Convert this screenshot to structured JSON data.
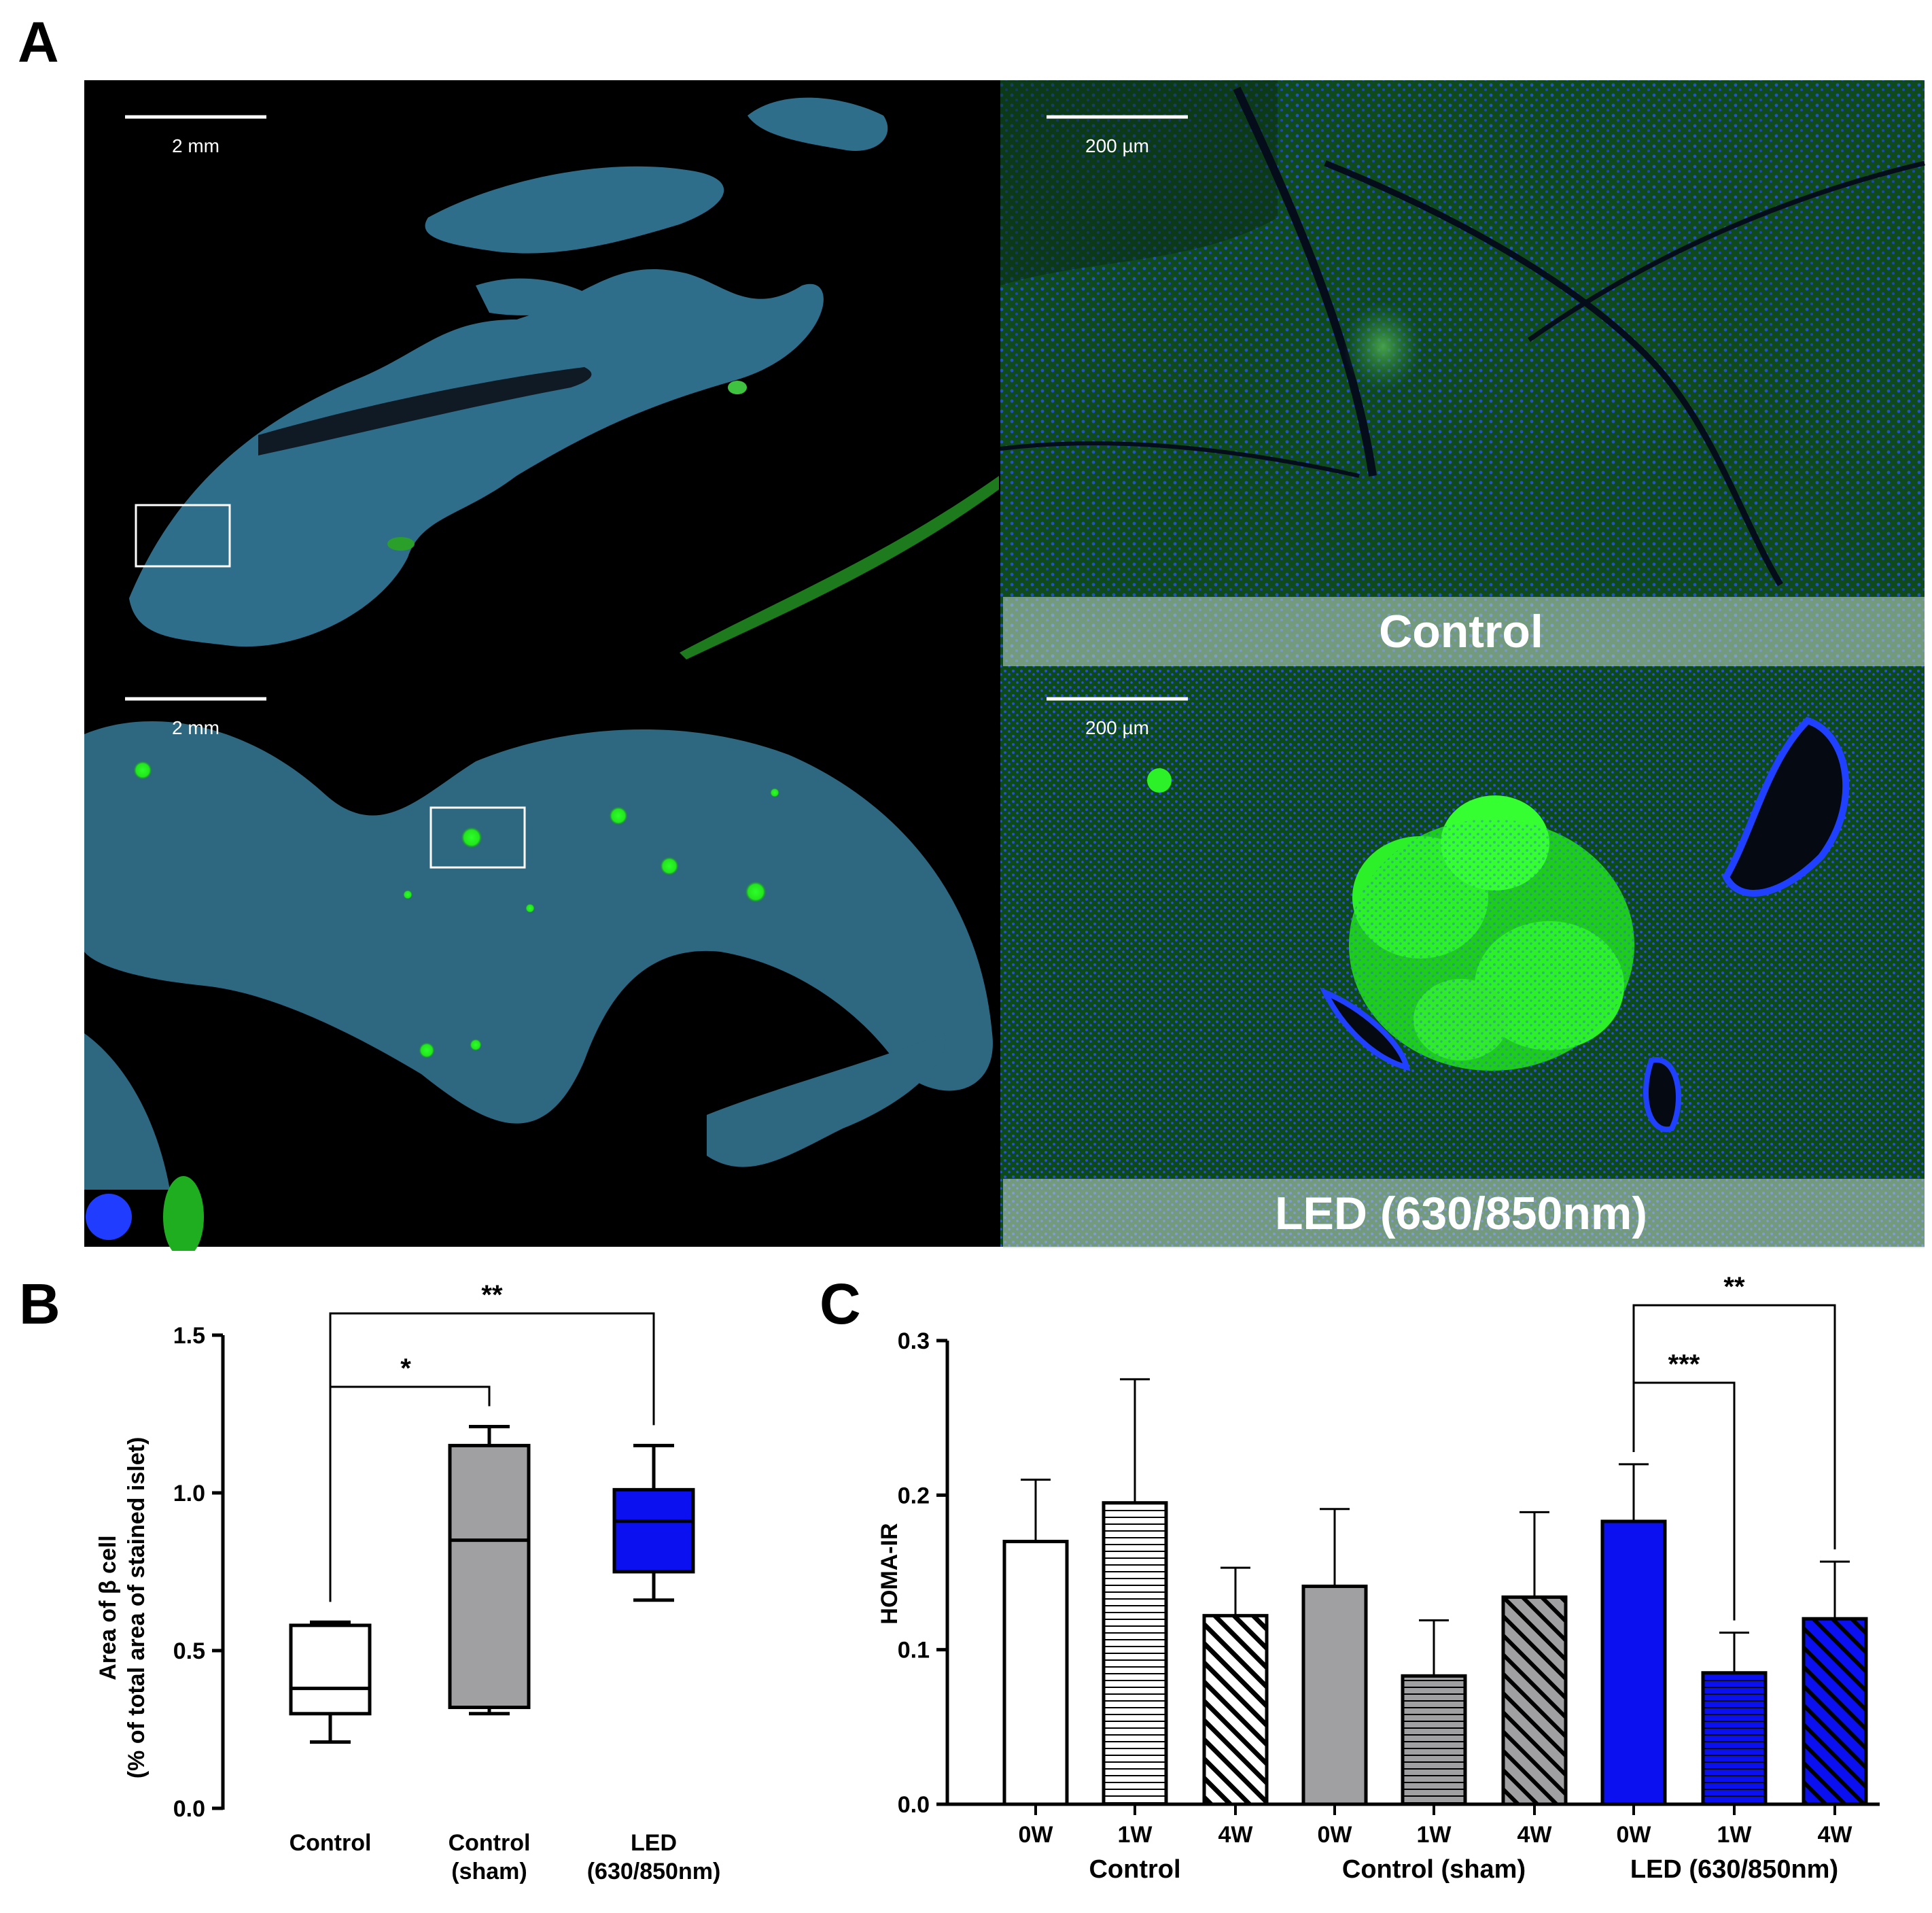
{
  "panels": {
    "a": {
      "letter": "A",
      "scale_bars": [
        "2 mm",
        "200 µm",
        "2 mm",
        "200 µm"
      ],
      "band_labels": [
        "Control",
        "LED (630/850nm)"
      ],
      "colors": {
        "nuclei": "#1a3cff",
        "insulin": "#22e61c",
        "background": "#000000"
      }
    },
    "b": {
      "letter": "B"
    },
    "c": {
      "letter": "C"
    }
  },
  "chart_data": [
    {
      "type": "box",
      "ylabel_lines": [
        "Area of β cell",
        "(% of total area of stained islet)"
      ],
      "yticks": [
        "0.0",
        "0.5",
        "1.0",
        "1.5"
      ],
      "ylim": [
        0,
        1.5
      ],
      "categories": [
        {
          "label_lines": [
            "Control"
          ],
          "min": 0.21,
          "q1": 0.3,
          "median": 0.38,
          "q3": 0.58,
          "max": 0.59,
          "fill": "#ffffff"
        },
        {
          "label_lines": [
            "Control",
            "(sham)"
          ],
          "min": 0.3,
          "q1": 0.32,
          "median": 0.85,
          "q3": 1.15,
          "max": 1.21,
          "fill": "#a0a0a3"
        },
        {
          "label_lines": [
            "LED",
            "(630/850nm)"
          ],
          "min": 0.66,
          "q1": 0.75,
          "median": 0.91,
          "q3": 1.01,
          "max": 1.15,
          "fill": "#0a10f0"
        }
      ],
      "significance": [
        {
          "from": 0,
          "to": 1,
          "label": "*"
        },
        {
          "from": 0,
          "to": 2,
          "label": "**"
        }
      ]
    },
    {
      "type": "bar",
      "ylabel": "HOMA-IR",
      "yticks": [
        "0.0",
        "0.1",
        "0.2",
        "0.3"
      ],
      "ylim": [
        0,
        0.3
      ],
      "groups": [
        {
          "label": "Control",
          "fill": "#ffffff",
          "bars": [
            {
              "label": "0W",
              "value": 0.17,
              "error": 0.04,
              "pattern": "none"
            },
            {
              "label": "1W",
              "value": 0.195,
              "error": 0.08,
              "pattern": "horizontal"
            },
            {
              "label": "4W",
              "value": 0.122,
              "error": 0.031,
              "pattern": "diagonal"
            }
          ]
        },
        {
          "label": "Control (sham)",
          "fill": "#a0a0a3",
          "bars": [
            {
              "label": "0W",
              "value": 0.141,
              "error": 0.05,
              "pattern": "none"
            },
            {
              "label": "1W",
              "value": 0.083,
              "error": 0.036,
              "pattern": "horizontal"
            },
            {
              "label": "4W",
              "value": 0.134,
              "error": 0.055,
              "pattern": "diagonal"
            }
          ]
        },
        {
          "label": "LED (630/850nm)",
          "fill": "#0a10f0",
          "bars": [
            {
              "label": "0W",
              "value": 0.183,
              "error": 0.037,
              "pattern": "none"
            },
            {
              "label": "1W",
              "value": 0.085,
              "error": 0.026,
              "pattern": "horizontal"
            },
            {
              "label": "4W",
              "value": 0.12,
              "error": 0.037,
              "pattern": "diagonal"
            }
          ]
        }
      ],
      "significance": [
        {
          "from": 6,
          "to": 7,
          "label": "***"
        },
        {
          "from": 6,
          "to": 8,
          "label": "**"
        }
      ]
    }
  ]
}
